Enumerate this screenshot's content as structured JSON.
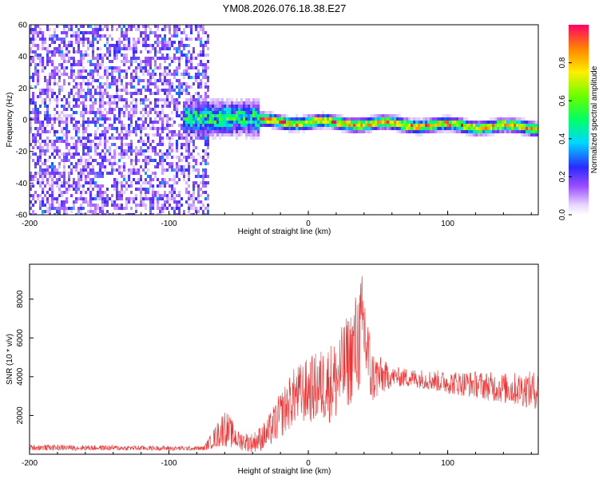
{
  "figure": {
    "title": "YM08.2026.076.18.38.E27"
  },
  "chart_data": [
    {
      "type": "heatmap",
      "xlabel": "Height of straight line (km)",
      "ylabel": "Frequency (Hz)",
      "xlim": [
        -200,
        165
      ],
      "ylim": [
        -60,
        60
      ],
      "xticks": [
        "-200",
        "-100",
        "0",
        "100"
      ],
      "yticks": [
        "-60",
        "-40",
        "-20",
        "0",
        "20",
        "40",
        "60"
      ],
      "grid": false,
      "colorbar": {
        "label": "Normalized spectral amplitude",
        "range": [
          0,
          1
        ],
        "ticks": [
          "0.0",
          "0.2",
          "0.4",
          "0.6",
          "0.8"
        ],
        "colormap": "rainbow-white-to-red"
      },
      "regions": [
        {
          "x": [
            -200,
            -72
          ],
          "description_value": "broadband noise",
          "amplitude": 0.25
        },
        {
          "x": [
            -90,
            -35
          ],
          "center_hz": 2,
          "spread_hz": 8,
          "amplitude": 0.45
        },
        {
          "x": [
            -35,
            165
          ],
          "center_hz": [
            0,
            -4
          ],
          "spread_hz": 3,
          "amplitude": 1.0
        }
      ]
    },
    {
      "type": "line",
      "xlabel": "Height of straight line (km)",
      "ylabel": "SNR (10 * v/v)",
      "xlim": [
        -200,
        165
      ],
      "ylim": [
        0,
        9800
      ],
      "xticks": [
        "-200",
        "-100",
        "0",
        "100"
      ],
      "yticks": [
        "2000",
        "4000",
        "6000",
        "8000"
      ],
      "grid": false,
      "series": [
        {
          "color": "#ee3333",
          "envelope": [
            {
              "x": -200,
              "y": 350,
              "noise": 150
            },
            {
              "x": -75,
              "y": 300,
              "noise": 120
            },
            {
              "x": -68,
              "y": 800,
              "noise": 500
            },
            {
              "x": -60,
              "y": 1400,
              "noise": 1000
            },
            {
              "x": -50,
              "y": 700,
              "noise": 500
            },
            {
              "x": -40,
              "y": 600,
              "noise": 500
            },
            {
              "x": -30,
              "y": 1000,
              "noise": 800
            },
            {
              "x": -20,
              "y": 2000,
              "noise": 1200
            },
            {
              "x": -10,
              "y": 3000,
              "noise": 1500
            },
            {
              "x": 0,
              "y": 3300,
              "noise": 1700
            },
            {
              "x": 20,
              "y": 3800,
              "noise": 2200
            },
            {
              "x": 30,
              "y": 5000,
              "noise": 2500
            },
            {
              "x": 40,
              "y": 6500,
              "noise": 3200
            },
            {
              "x": 45,
              "y": 4000,
              "noise": 1500
            },
            {
              "x": 60,
              "y": 4000,
              "noise": 500
            },
            {
              "x": 80,
              "y": 3900,
              "noise": 500
            },
            {
              "x": 100,
              "y": 3700,
              "noise": 600
            },
            {
              "x": 120,
              "y": 3600,
              "noise": 700
            },
            {
              "x": 140,
              "y": 3400,
              "noise": 800
            },
            {
              "x": 165,
              "y": 3300,
              "noise": 1000
            }
          ]
        }
      ]
    }
  ]
}
